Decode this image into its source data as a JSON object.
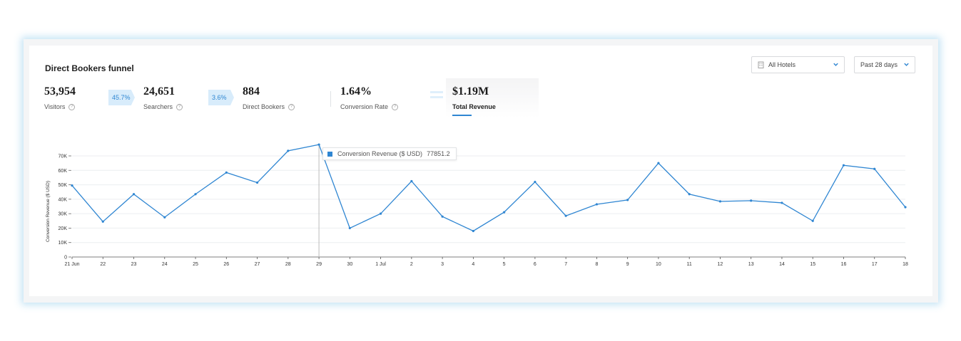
{
  "header": {
    "title": "Direct Bookers funnel"
  },
  "filters": {
    "hotel_select": {
      "value": "All Hotels",
      "icon": "building-icon"
    },
    "range_select": {
      "value": "Past 28 days"
    }
  },
  "metrics": [
    {
      "value": "53,954",
      "label": "Visitors"
    },
    {
      "value": "24,651",
      "label": "Searchers"
    },
    {
      "value": "884",
      "label": "Direct Bookers"
    },
    {
      "value": "1.64%",
      "label": "Conversion Rate"
    }
  ],
  "conversions": [
    "45.7%",
    "3.6%"
  ],
  "total_revenue": {
    "value": "$1.19M",
    "label": "Total Revenue"
  },
  "tooltip": {
    "series": "Conversion Revenue ($ USD)",
    "value": "77851.2"
  },
  "colors": {
    "accent": "#2f86d2",
    "arrow_bg": "#d8ecfb"
  },
  "chart_data": {
    "type": "line",
    "ylabel": "Conversion Revenue ($ USD)",
    "xlabel": "",
    "ylim": [
      0,
      70000
    ],
    "yticks": [
      "0",
      "10K",
      "20K",
      "30K",
      "40K",
      "50K",
      "60K",
      "70K"
    ],
    "categories": [
      "21 Jun",
      "22",
      "23",
      "24",
      "25",
      "26",
      "27",
      "28",
      "29",
      "30",
      "1 Jul",
      "2",
      "3",
      "4",
      "5",
      "6",
      "7",
      "8",
      "9",
      "10",
      "11",
      "12",
      "13",
      "14",
      "15",
      "16",
      "17",
      "18"
    ],
    "series": [
      {
        "name": "Conversion Revenue ($ USD)",
        "values": [
          49500,
          24500,
          43500,
          27500,
          43500,
          58500,
          51500,
          73500,
          77851.2,
          20000,
          30000,
          52500,
          28000,
          18000,
          31000,
          52000,
          28500,
          36500,
          39500,
          65000,
          43500,
          38500,
          39000,
          37500,
          25000,
          63500,
          61000,
          34500
        ]
      }
    ],
    "highlight_index": 8,
    "grid": true
  }
}
